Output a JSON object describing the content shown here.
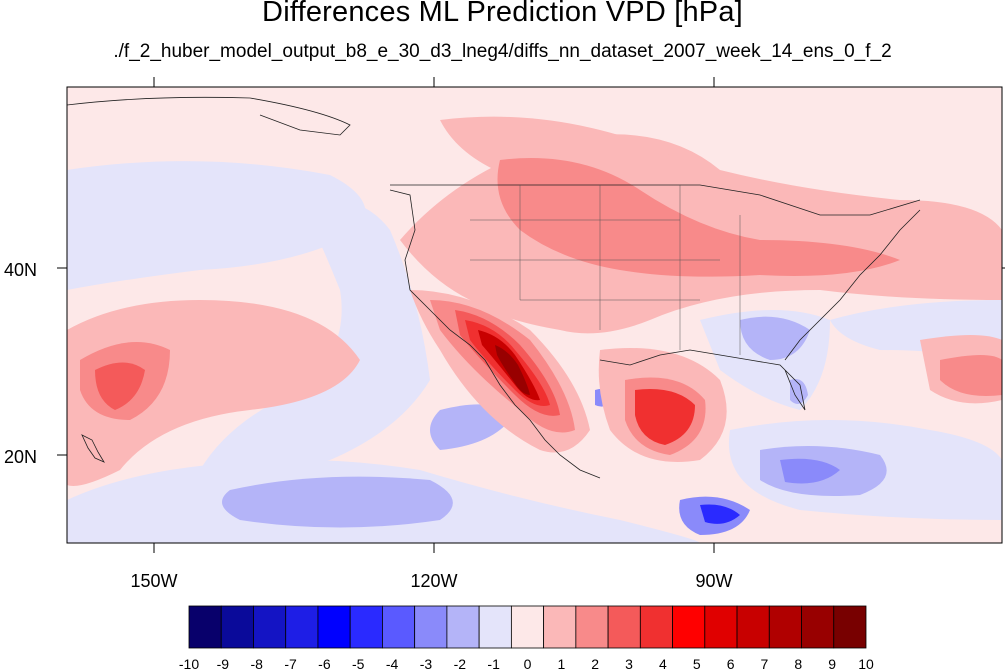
{
  "title": "Differences ML Prediction VPD [hPa]",
  "subtitle": "./f_2_huber_model_output_b8_e_30_d3_lneg4/diffs_nn_dataset_2007_week_14_ens_0_f_2",
  "map": {
    "lon_labels": [
      "150W",
      "120W",
      "90W"
    ],
    "lat_labels": [
      "40N",
      "20N"
    ],
    "background_color": "#fde8e8"
  },
  "colorbar": {
    "colors": [
      "#08006b",
      "#0a0a9a",
      "#1414c4",
      "#1e1ee6",
      "#0000ff",
      "#2a2aff",
      "#5a5aff",
      "#8a8afa",
      "#b4b4f8",
      "#e4e4fa",
      "#fde8e8",
      "#fbb8b8",
      "#f88a8a",
      "#f45a5a",
      "#f03030",
      "#ff0000",
      "#e00000",
      "#c80000",
      "#b00000",
      "#980000",
      "#780000"
    ],
    "labels": [
      "-10",
      "-9",
      "-8",
      "-7",
      "-6",
      "-5",
      "-4",
      "-3",
      "-2",
      "-1",
      "0",
      "1",
      "2",
      "3",
      "4",
      "5",
      "6",
      "7",
      "8",
      "9",
      "10"
    ]
  }
}
